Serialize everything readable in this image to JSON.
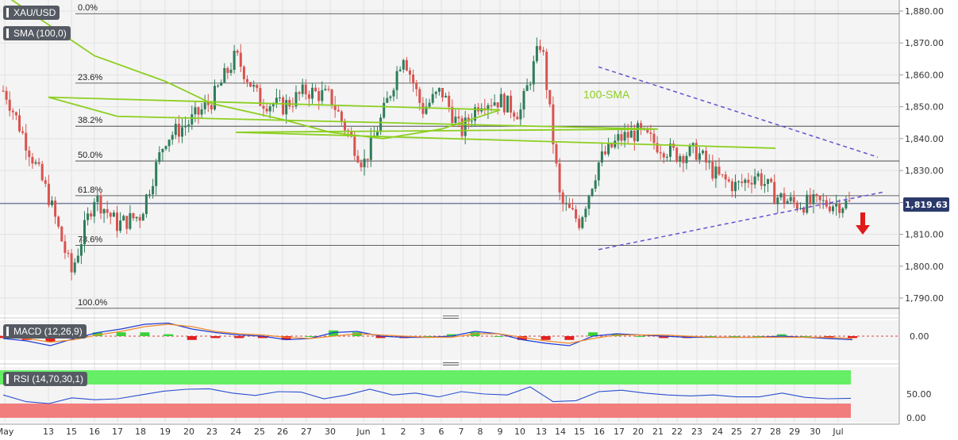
{
  "header": {
    "symbol": "XAU/USD",
    "sma_label": "SMA (100,0)",
    "macd_label": "MACD (12,26,9)",
    "rsi_label": "RSI (14,70,30,1)",
    "last_price": "1,819.63",
    "sma_annotation": "100-SMA"
  },
  "colors": {
    "bull": "#2e7d5b",
    "bear": "#d9534f",
    "sma": "#8ccf1f",
    "trendline": "#6a4fd0",
    "arrow": "#e11a1a",
    "macd_line": "#1f3dd6",
    "signal_line": "#f08a2a",
    "rsi_line": "#2a4fd0",
    "rsi_overbought": "#66ee66",
    "rsi_oversold": "#f27d7d"
  },
  "chart_data": [
    {
      "type": "candlestick",
      "title": "XAU/USD",
      "ylabel": "",
      "ylim": [
        1786,
        1882
      ],
      "y_ticks": [
        "1,790.00",
        "1,800.00",
        "1,810.00",
        "1,820.00",
        "1,830.00",
        "1,840.00",
        "1,850.00",
        "1,860.00",
        "1,870.00",
        "1,880.00"
      ],
      "x_ticks": [
        "May",
        "13",
        "15",
        "16",
        "17",
        "18",
        "19",
        "20",
        "23",
        "24",
        "25",
        "26",
        "27",
        "30",
        "Jun",
        "1",
        "2",
        "3",
        "6",
        "7",
        "8",
        "9",
        "10",
        "13",
        "14",
        "15",
        "16",
        "17",
        "20",
        "21",
        "22",
        "23",
        "24",
        "25",
        "27",
        "28",
        "29",
        "30",
        "Jul"
      ],
      "ohlc_keypoints": [
        [
          "May",
          1855
        ],
        [
          "13",
          1822
        ],
        [
          "15",
          1798
        ],
        [
          "16",
          1822
        ],
        [
          "17",
          1813
        ],
        [
          "18",
          1816
        ],
        [
          "19",
          1840
        ],
        [
          "20",
          1845
        ],
        [
          "23",
          1852
        ],
        [
          "24",
          1866
        ],
        [
          "25",
          1852
        ],
        [
          "26",
          1850
        ],
        [
          "27",
          1855
        ],
        [
          "30",
          1853
        ],
        [
          "Jun",
          1832
        ],
        [
          "1",
          1848
        ],
        [
          "2",
          1867
        ],
        [
          "3",
          1849
        ],
        [
          "6",
          1855
        ],
        [
          "7",
          1842
        ],
        [
          "8",
          1852
        ],
        [
          "9",
          1852
        ],
        [
          "10",
          1848
        ],
        [
          "13",
          1871
        ],
        [
          "14",
          1820
        ],
        [
          "15",
          1814
        ],
        [
          "16",
          1833
        ],
        [
          "17",
          1840
        ],
        [
          "20",
          1842
        ],
        [
          "21",
          1838
        ],
        [
          "22",
          1835
        ],
        [
          "23",
          1836
        ],
        [
          "24",
          1828
        ],
        [
          "25",
          1825
        ],
        [
          "27",
          1829
        ],
        [
          "28",
          1822
        ],
        [
          "29",
          1819.63
        ]
      ],
      "sma_100": [
        [
          "May",
          1885
        ],
        [
          "16",
          1866
        ],
        [
          "19",
          1858
        ],
        [
          "23",
          1851
        ],
        [
          "26",
          1846
        ],
        [
          "30",
          1842
        ],
        [
          "1",
          1840
        ],
        [
          "6",
          1843
        ],
        [
          "9",
          1849
        ],
        [
          "13",
          1853
        ],
        [
          "17",
          1847
        ],
        [
          "21",
          1843
        ],
        [
          "24",
          1842
        ],
        [
          "28",
          1837
        ]
      ],
      "fibonacci": [
        {
          "label": "0.0%",
          "value": 1879.2
        },
        {
          "label": "23.6%",
          "value": 1857.4
        },
        {
          "label": "38.2%",
          "value": 1843.9
        },
        {
          "label": "50.0%",
          "value": 1833.0
        },
        {
          "label": "61.8%",
          "value": 1822.1
        },
        {
          "label": "78.6%",
          "value": 1806.5
        },
        {
          "label": "100.0%",
          "value": 1786.8
        }
      ],
      "last_price": 1819.63
    },
    {
      "type": "line",
      "title": "MACD (12,26,9)",
      "y_ticks": [
        "0.00"
      ],
      "series": [
        {
          "name": "MACD",
          "values": [
            -2,
            -4,
            -8,
            -2,
            3,
            6,
            10,
            11,
            6,
            3,
            1,
            0,
            -3,
            -2,
            3,
            4,
            0,
            -1,
            -1,
            0,
            4,
            2,
            -3,
            -6,
            -8,
            0,
            2,
            1,
            0,
            -1,
            -1,
            -1,
            -1,
            0,
            -1,
            -2,
            -3
          ]
        },
        {
          "name": "Signal",
          "values": [
            -1,
            -2,
            -5,
            -3,
            1,
            4,
            8,
            10,
            8,
            4,
            2,
            1,
            -1,
            -2,
            0,
            2,
            1,
            0,
            -1,
            -1,
            2,
            2,
            -1,
            -4,
            -6,
            -2,
            1,
            1,
            1,
            0,
            -1,
            -1,
            -1,
            -1,
            -1,
            -1,
            -2
          ]
        }
      ]
    },
    {
      "type": "line",
      "title": "RSI (14,70,30,1)",
      "y_ticks": [
        "0.00",
        "50.00"
      ],
      "series": [
        {
          "name": "RSI",
          "values": [
            48,
            34,
            30,
            42,
            38,
            40,
            48,
            56,
            60,
            61,
            52,
            47,
            55,
            54,
            40,
            48,
            60,
            48,
            52,
            44,
            55,
            50,
            48,
            65,
            34,
            36,
            55,
            58,
            52,
            48,
            46,
            48,
            44,
            44,
            52,
            43,
            40,
            41
          ]
        }
      ]
    }
  ]
}
